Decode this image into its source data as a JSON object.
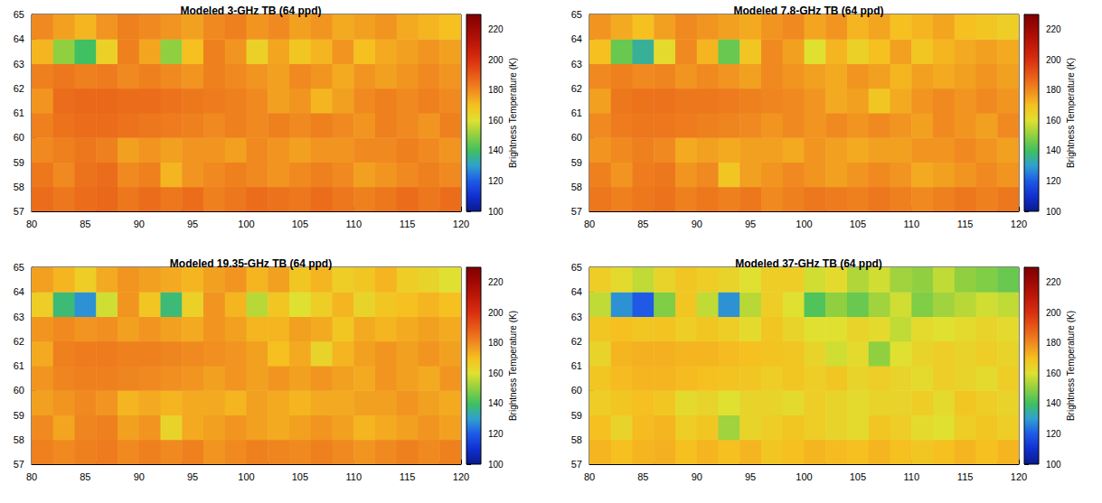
{
  "chart_data": [
    {
      "type": "heatmap",
      "title": "Modeled 3-GHz TB (64 ppd)",
      "x": [
        81,
        83,
        85,
        87,
        89,
        91,
        93,
        95,
        97,
        99,
        101,
        103,
        105,
        107,
        109,
        111,
        113,
        115,
        117,
        119
      ],
      "y": [
        57.5,
        58.5,
        59.5,
        60.5,
        61.5,
        62.5,
        63.5,
        64.5
      ],
      "cells": [
        [
          186,
          184,
          186,
          187,
          184,
          186,
          184,
          186,
          182,
          184,
          186,
          185,
          184,
          186,
          184,
          182,
          184,
          186,
          184,
          186
        ],
        [
          184,
          180,
          185,
          186,
          180,
          182,
          172,
          178,
          180,
          182,
          180,
          178,
          180,
          182,
          180,
          176,
          178,
          180,
          182,
          180
        ],
        [
          180,
          182,
          184,
          182,
          176,
          178,
          176,
          178,
          178,
          176,
          180,
          178,
          176,
          178,
          178,
          180,
          180,
          182,
          180,
          178
        ],
        [
          182,
          185,
          186,
          186,
          185,
          184,
          183,
          182,
          180,
          182,
          180,
          182,
          180,
          182,
          180,
          178,
          182,
          180,
          178,
          182
        ],
        [
          178,
          186,
          187,
          187,
          186,
          186,
          185,
          184,
          183,
          182,
          180,
          176,
          178,
          172,
          176,
          180,
          182,
          180,
          182,
          180
        ],
        [
          182,
          184,
          182,
          183,
          180,
          182,
          180,
          178,
          182,
          180,
          178,
          176,
          180,
          178,
          174,
          178,
          176,
          178,
          180,
          178
        ],
        [
          172,
          150,
          140,
          165,
          182,
          175,
          150,
          170,
          182,
          178,
          165,
          175,
          168,
          172,
          178,
          170,
          174,
          176,
          178,
          176
        ],
        [
          180,
          176,
          172,
          178,
          182,
          180,
          178,
          176,
          180,
          182,
          178,
          180,
          176,
          178,
          174,
          176,
          178,
          174,
          172,
          170
        ]
      ],
      "xlim": [
        80,
        120
      ],
      "xticks": [
        80,
        85,
        90,
        95,
        100,
        105,
        110,
        115,
        120
      ],
      "ylim": [
        57,
        65
      ],
      "yticks": [
        57,
        58,
        59,
        60,
        61,
        62,
        63,
        64,
        65
      ],
      "colorbar": {
        "label": "Brightness Temperature (K)",
        "range": [
          100,
          230
        ],
        "ticks": [
          100,
          120,
          140,
          160,
          180,
          200,
          220
        ]
      }
    },
    {
      "type": "heatmap",
      "title": "Modeled 7.8-GHz TB (64 ppd)",
      "x": [
        81,
        83,
        85,
        87,
        89,
        91,
        93,
        95,
        97,
        99,
        101,
        103,
        105,
        107,
        109,
        111,
        113,
        115,
        117,
        119
      ],
      "y": [
        57.5,
        58.5,
        59.5,
        60.5,
        61.5,
        62.5,
        63.5,
        64.5
      ],
      "cells": [
        [
          184,
          182,
          184,
          185,
          182,
          184,
          182,
          184,
          180,
          182,
          184,
          183,
          182,
          184,
          182,
          180,
          182,
          184,
          182,
          184
        ],
        [
          182,
          178,
          183,
          184,
          178,
          180,
          168,
          176,
          178,
          180,
          178,
          176,
          178,
          180,
          178,
          174,
          176,
          178,
          180,
          178
        ],
        [
          178,
          180,
          182,
          180,
          174,
          176,
          174,
          176,
          176,
          174,
          178,
          176,
          174,
          176,
          176,
          178,
          178,
          180,
          178,
          176
        ],
        [
          180,
          183,
          184,
          184,
          183,
          182,
          181,
          180,
          178,
          180,
          178,
          180,
          178,
          180,
          178,
          176,
          180,
          178,
          176,
          180
        ],
        [
          176,
          184,
          185,
          185,
          184,
          184,
          183,
          182,
          181,
          180,
          178,
          174,
          176,
          168,
          174,
          178,
          180,
          178,
          180,
          178
        ],
        [
          180,
          182,
          180,
          181,
          178,
          180,
          178,
          176,
          180,
          178,
          176,
          174,
          178,
          176,
          172,
          176,
          174,
          176,
          178,
          176
        ],
        [
          170,
          145,
          135,
          162,
          180,
          172,
          145,
          168,
          180,
          176,
          160,
          172,
          165,
          170,
          176,
          168,
          172,
          174,
          176,
          174
        ],
        [
          178,
          174,
          170,
          176,
          180,
          178,
          176,
          174,
          178,
          180,
          175,
          178,
          172,
          175,
          170,
          172,
          175,
          170,
          168,
          166
        ]
      ],
      "xlim": [
        80,
        120
      ],
      "xticks": [
        80,
        85,
        90,
        95,
        100,
        105,
        110,
        115,
        120
      ],
      "ylim": [
        57,
        65
      ],
      "yticks": [
        57,
        58,
        59,
        60,
        61,
        62,
        63,
        64,
        65
      ],
      "colorbar": {
        "label": "Brightness Temperature (K)",
        "range": [
          100,
          230
        ],
        "ticks": [
          100,
          120,
          140,
          160,
          180,
          200,
          220
        ]
      }
    },
    {
      "type": "heatmap",
      "title": "Modeled 19.35-GHz TB (64 ppd)",
      "x": [
        81,
        83,
        85,
        87,
        89,
        91,
        93,
        95,
        97,
        99,
        101,
        103,
        105,
        107,
        109,
        111,
        113,
        115,
        117,
        119
      ],
      "y": [
        57.5,
        58.5,
        59.5,
        60.5,
        61.5,
        62.5,
        63.5,
        64.5
      ],
      "cells": [
        [
          182,
          180,
          182,
          183,
          180,
          182,
          180,
          182,
          178,
          180,
          182,
          181,
          180,
          182,
          180,
          178,
          180,
          182,
          180,
          182
        ],
        [
          180,
          175,
          181,
          182,
          176,
          178,
          164,
          174,
          176,
          178,
          176,
          174,
          176,
          178,
          176,
          172,
          174,
          176,
          178,
          176
        ],
        [
          176,
          178,
          180,
          178,
          172,
          174,
          172,
          174,
          174,
          172,
          176,
          174,
          172,
          174,
          174,
          176,
          176,
          178,
          176,
          174
        ],
        [
          178,
          181,
          182,
          182,
          181,
          180,
          179,
          178,
          176,
          178,
          176,
          178,
          176,
          178,
          176,
          174,
          178,
          176,
          174,
          178
        ],
        [
          174,
          182,
          183,
          183,
          182,
          182,
          181,
          180,
          179,
          178,
          176,
          170,
          174,
          164,
          172,
          176,
          178,
          176,
          178,
          176
        ],
        [
          178,
          180,
          178,
          179,
          176,
          178,
          176,
          174,
          178,
          176,
          172,
          172,
          176,
          174,
          168,
          174,
          172,
          174,
          176,
          174
        ],
        [
          166,
          138,
          128,
          158,
          178,
          168,
          138,
          165,
          178,
          172,
          155,
          168,
          160,
          166,
          172,
          164,
          168,
          170,
          172,
          170
        ],
        [
          176,
          172,
          166,
          174,
          178,
          176,
          174,
          172,
          176,
          178,
          172,
          176,
          168,
          172,
          166,
          168,
          172,
          166,
          164,
          160
        ]
      ],
      "xlim": [
        80,
        120
      ],
      "xticks": [
        80,
        85,
        90,
        95,
        100,
        105,
        110,
        115,
        120
      ],
      "ylim": [
        57,
        65
      ],
      "yticks": [
        57,
        58,
        59,
        60,
        61,
        62,
        63,
        64,
        65
      ],
      "colorbar": {
        "label": "Brightness Temperature (K)",
        "range": [
          100,
          230
        ],
        "ticks": [
          100,
          120,
          140,
          160,
          180,
          200,
          220
        ]
      }
    },
    {
      "type": "heatmap",
      "title": "Modeled 37-GHz TB (64 ppd)",
      "x": [
        81,
        83,
        85,
        87,
        89,
        91,
        93,
        95,
        97,
        99,
        101,
        103,
        105,
        107,
        109,
        111,
        113,
        115,
        117,
        119
      ],
      "y": [
        57.5,
        58.5,
        59.5,
        60.5,
        61.5,
        62.5,
        63.5,
        64.5
      ],
      "cells": [
        [
          172,
          170,
          172,
          173,
          170,
          172,
          170,
          172,
          168,
          170,
          172,
          171,
          170,
          172,
          170,
          168,
          170,
          172,
          170,
          172
        ],
        [
          170,
          164,
          171,
          172,
          166,
          168,
          152,
          164,
          166,
          168,
          166,
          164,
          162,
          168,
          166,
          162,
          160,
          166,
          168,
          166
        ],
        [
          166,
          168,
          170,
          168,
          162,
          164,
          160,
          164,
          164,
          162,
          166,
          164,
          162,
          164,
          164,
          166,
          162,
          168,
          166,
          164
        ],
        [
          168,
          171,
          172,
          172,
          171,
          170,
          169,
          168,
          166,
          168,
          166,
          168,
          164,
          166,
          164,
          162,
          166,
          164,
          162,
          166
        ],
        [
          164,
          172,
          173,
          173,
          172,
          172,
          171,
          170,
          169,
          168,
          164,
          158,
          162,
          150,
          160,
          164,
          166,
          164,
          166,
          164
        ],
        [
          168,
          170,
          168,
          169,
          166,
          168,
          166,
          162,
          168,
          164,
          160,
          160,
          164,
          162,
          156,
          162,
          160,
          162,
          164,
          162
        ],
        [
          156,
          128,
          120,
          148,
          168,
          156,
          128,
          155,
          166,
          160,
          142,
          150,
          145,
          152,
          158,
          148,
          152,
          155,
          158,
          156
        ],
        [
          166,
          162,
          156,
          164,
          168,
          166,
          164,
          160,
          166,
          166,
          158,
          162,
          154,
          158,
          152,
          150,
          156,
          150,
          148,
          145
        ]
      ],
      "xlim": [
        80,
        120
      ],
      "xticks": [
        80,
        85,
        90,
        95,
        100,
        105,
        110,
        115,
        120
      ],
      "ylim": [
        57,
        65
      ],
      "yticks": [
        57,
        58,
        59,
        60,
        61,
        62,
        63,
        64,
        65
      ],
      "colorbar": {
        "label": "Brightness Temperature (K)",
        "range": [
          100,
          230
        ],
        "ticks": [
          100,
          120,
          140,
          160,
          180,
          200,
          220
        ]
      }
    }
  ]
}
